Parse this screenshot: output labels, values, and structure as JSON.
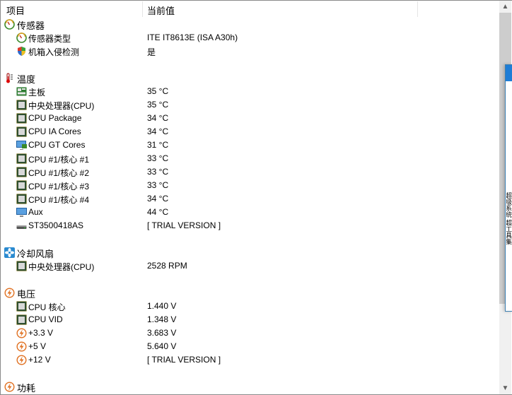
{
  "header": {
    "col_item": "项目",
    "col_value": "当前值"
  },
  "rows": [
    {
      "type": "group",
      "icon": "gauge-icon",
      "label": "传感器",
      "value": ""
    },
    {
      "type": "child",
      "icon": "gauge-icon",
      "label": "传感器类型",
      "value": "ITE IT8613E  (ISA A30h)"
    },
    {
      "type": "child",
      "icon": "shield-icon",
      "label": "机箱入侵检测",
      "value": "是"
    },
    {
      "type": "blank"
    },
    {
      "type": "group",
      "icon": "thermometer-icon",
      "label": "温度",
      "value": ""
    },
    {
      "type": "child",
      "icon": "motherboard-icon",
      "label": "主板",
      "value": "35 °C"
    },
    {
      "type": "child",
      "icon": "chip-icon",
      "label": "中央处理器(CPU)",
      "value": "35 °C"
    },
    {
      "type": "child",
      "icon": "chip-icon",
      "label": "CPU Package",
      "value": "34 °C"
    },
    {
      "type": "child",
      "icon": "chip-icon",
      "label": "CPU IA Cores",
      "value": "34 °C"
    },
    {
      "type": "child",
      "icon": "gpu-monitor-icon",
      "label": "CPU GT Cores",
      "value": "31 °C"
    },
    {
      "type": "child",
      "icon": "chip-icon",
      "label": "CPU #1/核心 #1",
      "value": "33 °C"
    },
    {
      "type": "child",
      "icon": "chip-icon",
      "label": "CPU #1/核心 #2",
      "value": "33 °C"
    },
    {
      "type": "child",
      "icon": "chip-icon",
      "label": "CPU #1/核心 #3",
      "value": "33 °C"
    },
    {
      "type": "child",
      "icon": "chip-icon",
      "label": "CPU #1/核心 #4",
      "value": "34 °C"
    },
    {
      "type": "child",
      "icon": "monitor-icon",
      "label": "Aux",
      "value": "44 °C"
    },
    {
      "type": "child",
      "icon": "hard-drive-icon",
      "label": "ST3500418AS",
      "value": "[ TRIAL VERSION ]"
    },
    {
      "type": "blank"
    },
    {
      "type": "group",
      "icon": "fan-icon",
      "label": "冷却风扇",
      "value": ""
    },
    {
      "type": "child",
      "icon": "chip-icon",
      "label": "中央处理器(CPU)",
      "value": "2528 RPM"
    },
    {
      "type": "blank"
    },
    {
      "type": "group",
      "icon": "voltage-icon",
      "label": "电压",
      "value": ""
    },
    {
      "type": "child",
      "icon": "chip-icon",
      "label": "CPU 核心",
      "value": "1.440 V"
    },
    {
      "type": "child",
      "icon": "chip-icon",
      "label": "CPU VID",
      "value": "1.348 V"
    },
    {
      "type": "child",
      "icon": "voltage-icon",
      "label": "+3.3 V",
      "value": "3.683 V"
    },
    {
      "type": "child",
      "icon": "voltage-icon",
      "label": "+5 V",
      "value": "5.640 V"
    },
    {
      "type": "child",
      "icon": "voltage-icon",
      "label": "+12 V",
      "value": "[ TRIAL VERSION ]"
    },
    {
      "type": "blank"
    },
    {
      "type": "group",
      "icon": "voltage-icon",
      "label": "功耗",
      "value": ""
    }
  ],
  "side_window": {
    "partial_text": "超级系统  超工具集"
  }
}
